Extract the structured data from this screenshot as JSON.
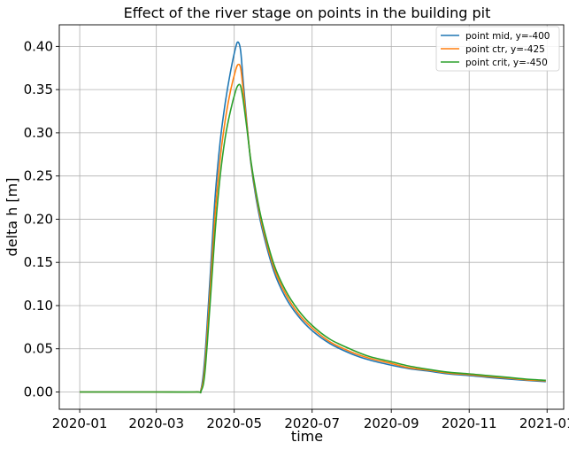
{
  "chart_data": {
    "type": "line",
    "title": "Effect of the river stage on points in the building pit",
    "xlabel": "time",
    "ylabel": "delta h [m]",
    "x_range": [
      "2019-12-16",
      "2021-01-14"
    ],
    "ylim": [
      -0.02,
      0.425
    ],
    "x_ticks": [
      "2020-01",
      "2020-03",
      "2020-05",
      "2020-07",
      "2020-09",
      "2020-11",
      "2021-01"
    ],
    "y_ticks": [
      "0.00",
      "0.05",
      "0.10",
      "0.15",
      "0.20",
      "0.25",
      "0.30",
      "0.35",
      "0.40"
    ],
    "grid": true,
    "legend_position": "top-right",
    "x": [
      "2020-01-01",
      "2020-02-01",
      "2020-03-01",
      "2020-04-01",
      "2020-04-05",
      "2020-04-08",
      "2020-04-12",
      "2020-04-16",
      "2020-04-20",
      "2020-04-24",
      "2020-04-28",
      "2020-05-02",
      "2020-05-04",
      "2020-05-06",
      "2020-05-08",
      "2020-05-11",
      "2020-05-14",
      "2020-05-18",
      "2020-05-23",
      "2020-06-01",
      "2020-06-10",
      "2020-06-20",
      "2020-07-01",
      "2020-07-15",
      "2020-08-01",
      "2020-08-15",
      "2020-09-01",
      "2020-09-15",
      "2020-10-01",
      "2020-10-15",
      "2020-11-01",
      "2020-11-15",
      "2020-12-01",
      "2020-12-15",
      "2020-12-31"
    ],
    "series": [
      {
        "name": "point mid, y=-400",
        "color": "#1f77b4",
        "values": [
          0.0,
          0.0,
          0.0,
          0.0,
          0.003,
          0.04,
          0.13,
          0.225,
          0.29,
          0.335,
          0.37,
          0.398,
          0.405,
          0.395,
          0.36,
          0.31,
          0.265,
          0.225,
          0.188,
          0.14,
          0.11,
          0.088,
          0.071,
          0.056,
          0.044,
          0.037,
          0.031,
          0.027,
          0.024,
          0.021,
          0.019,
          0.017,
          0.015,
          0.0135,
          0.012
        ]
      },
      {
        "name": "point ctr, y=-425",
        "color": "#ff7f0e",
        "values": [
          0.0,
          0.0,
          0.0,
          0.0,
          0.002,
          0.03,
          0.115,
          0.205,
          0.27,
          0.315,
          0.348,
          0.372,
          0.379,
          0.375,
          0.35,
          0.308,
          0.267,
          0.229,
          0.192,
          0.144,
          0.114,
          0.091,
          0.074,
          0.058,
          0.046,
          0.039,
          0.033,
          0.028,
          0.025,
          0.022,
          0.02,
          0.018,
          0.016,
          0.0142,
          0.0128
        ]
      },
      {
        "name": "point crit, y=-450",
        "color": "#2ca02c",
        "values": [
          0.0,
          0.0,
          0.0,
          0.0,
          0.001,
          0.022,
          0.1,
          0.185,
          0.25,
          0.295,
          0.325,
          0.348,
          0.355,
          0.354,
          0.338,
          0.304,
          0.268,
          0.232,
          0.196,
          0.148,
          0.118,
          0.095,
          0.077,
          0.061,
          0.049,
          0.041,
          0.035,
          0.03,
          0.026,
          0.023,
          0.021,
          0.019,
          0.017,
          0.015,
          0.0135
        ]
      }
    ]
  }
}
